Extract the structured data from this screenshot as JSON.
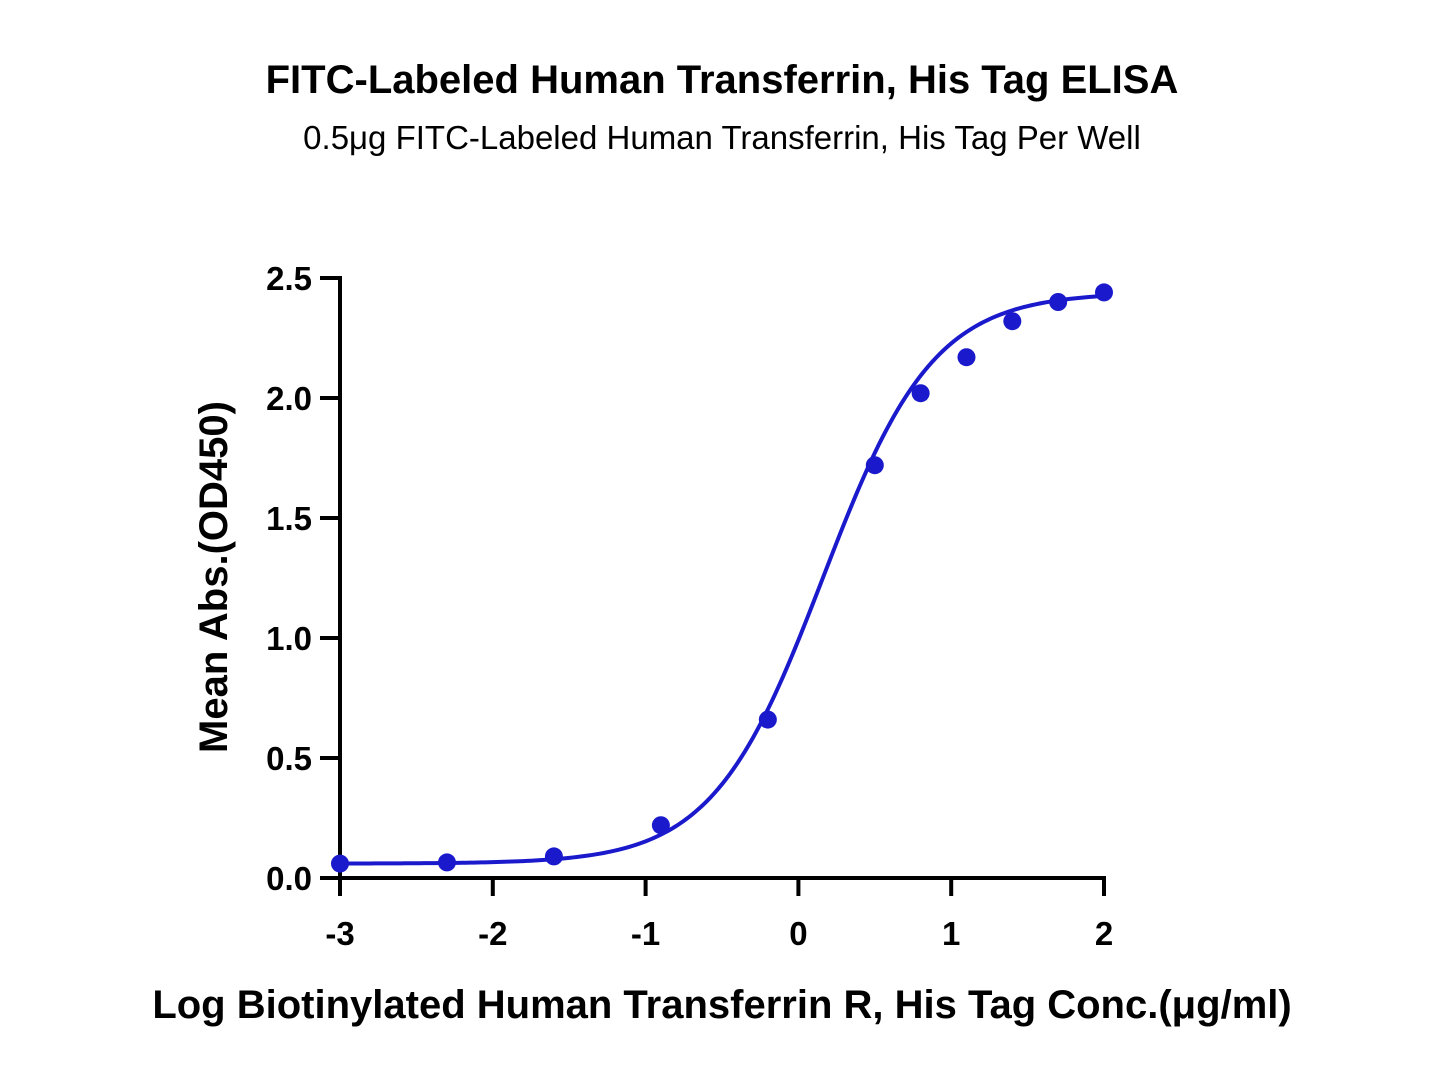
{
  "chart_data": {
    "type": "scatter",
    "title": "FITC-Labeled Human Transferrin, His Tag ELISA",
    "subtitle": "0.5μg FITC-Labeled Human Transferrin, His Tag Per Well",
    "xlabel": "Log Biotinylated Human Transferrin R, His Tag Conc.(μg/ml)",
    "ylabel": "Mean Abs.(OD450)",
    "xlim": [
      -3,
      2
    ],
    "ylim": [
      0,
      2.5
    ],
    "x_ticks": [
      -3,
      -2,
      -1,
      0,
      1,
      2
    ],
    "x_tick_labels": [
      "-3",
      "-2",
      "-1",
      "0",
      "1",
      "2"
    ],
    "y_ticks": [
      0,
      0.5,
      1.0,
      1.5,
      2.0,
      2.5
    ],
    "y_tick_labels": [
      "0.0",
      "0.5",
      "1.0",
      "1.5",
      "2.0",
      "2.5"
    ],
    "grid": false,
    "legend": "none",
    "color": "#1a1acc",
    "series": [
      {
        "x": [
          -3.0,
          -2.3,
          -1.6,
          -0.9,
          -0.2,
          0.5,
          0.8,
          1.1,
          1.4,
          1.7,
          2.0
        ],
        "y": [
          0.06,
          0.065,
          0.09,
          0.22,
          0.66,
          1.72,
          2.02,
          2.17,
          2.32,
          2.4,
          2.44
        ]
      }
    ],
    "fit_curve": {
      "type": "4PL",
      "bottom": 0.06,
      "top": 2.44,
      "logEC50": 0.16,
      "hill": 1.2
    }
  }
}
